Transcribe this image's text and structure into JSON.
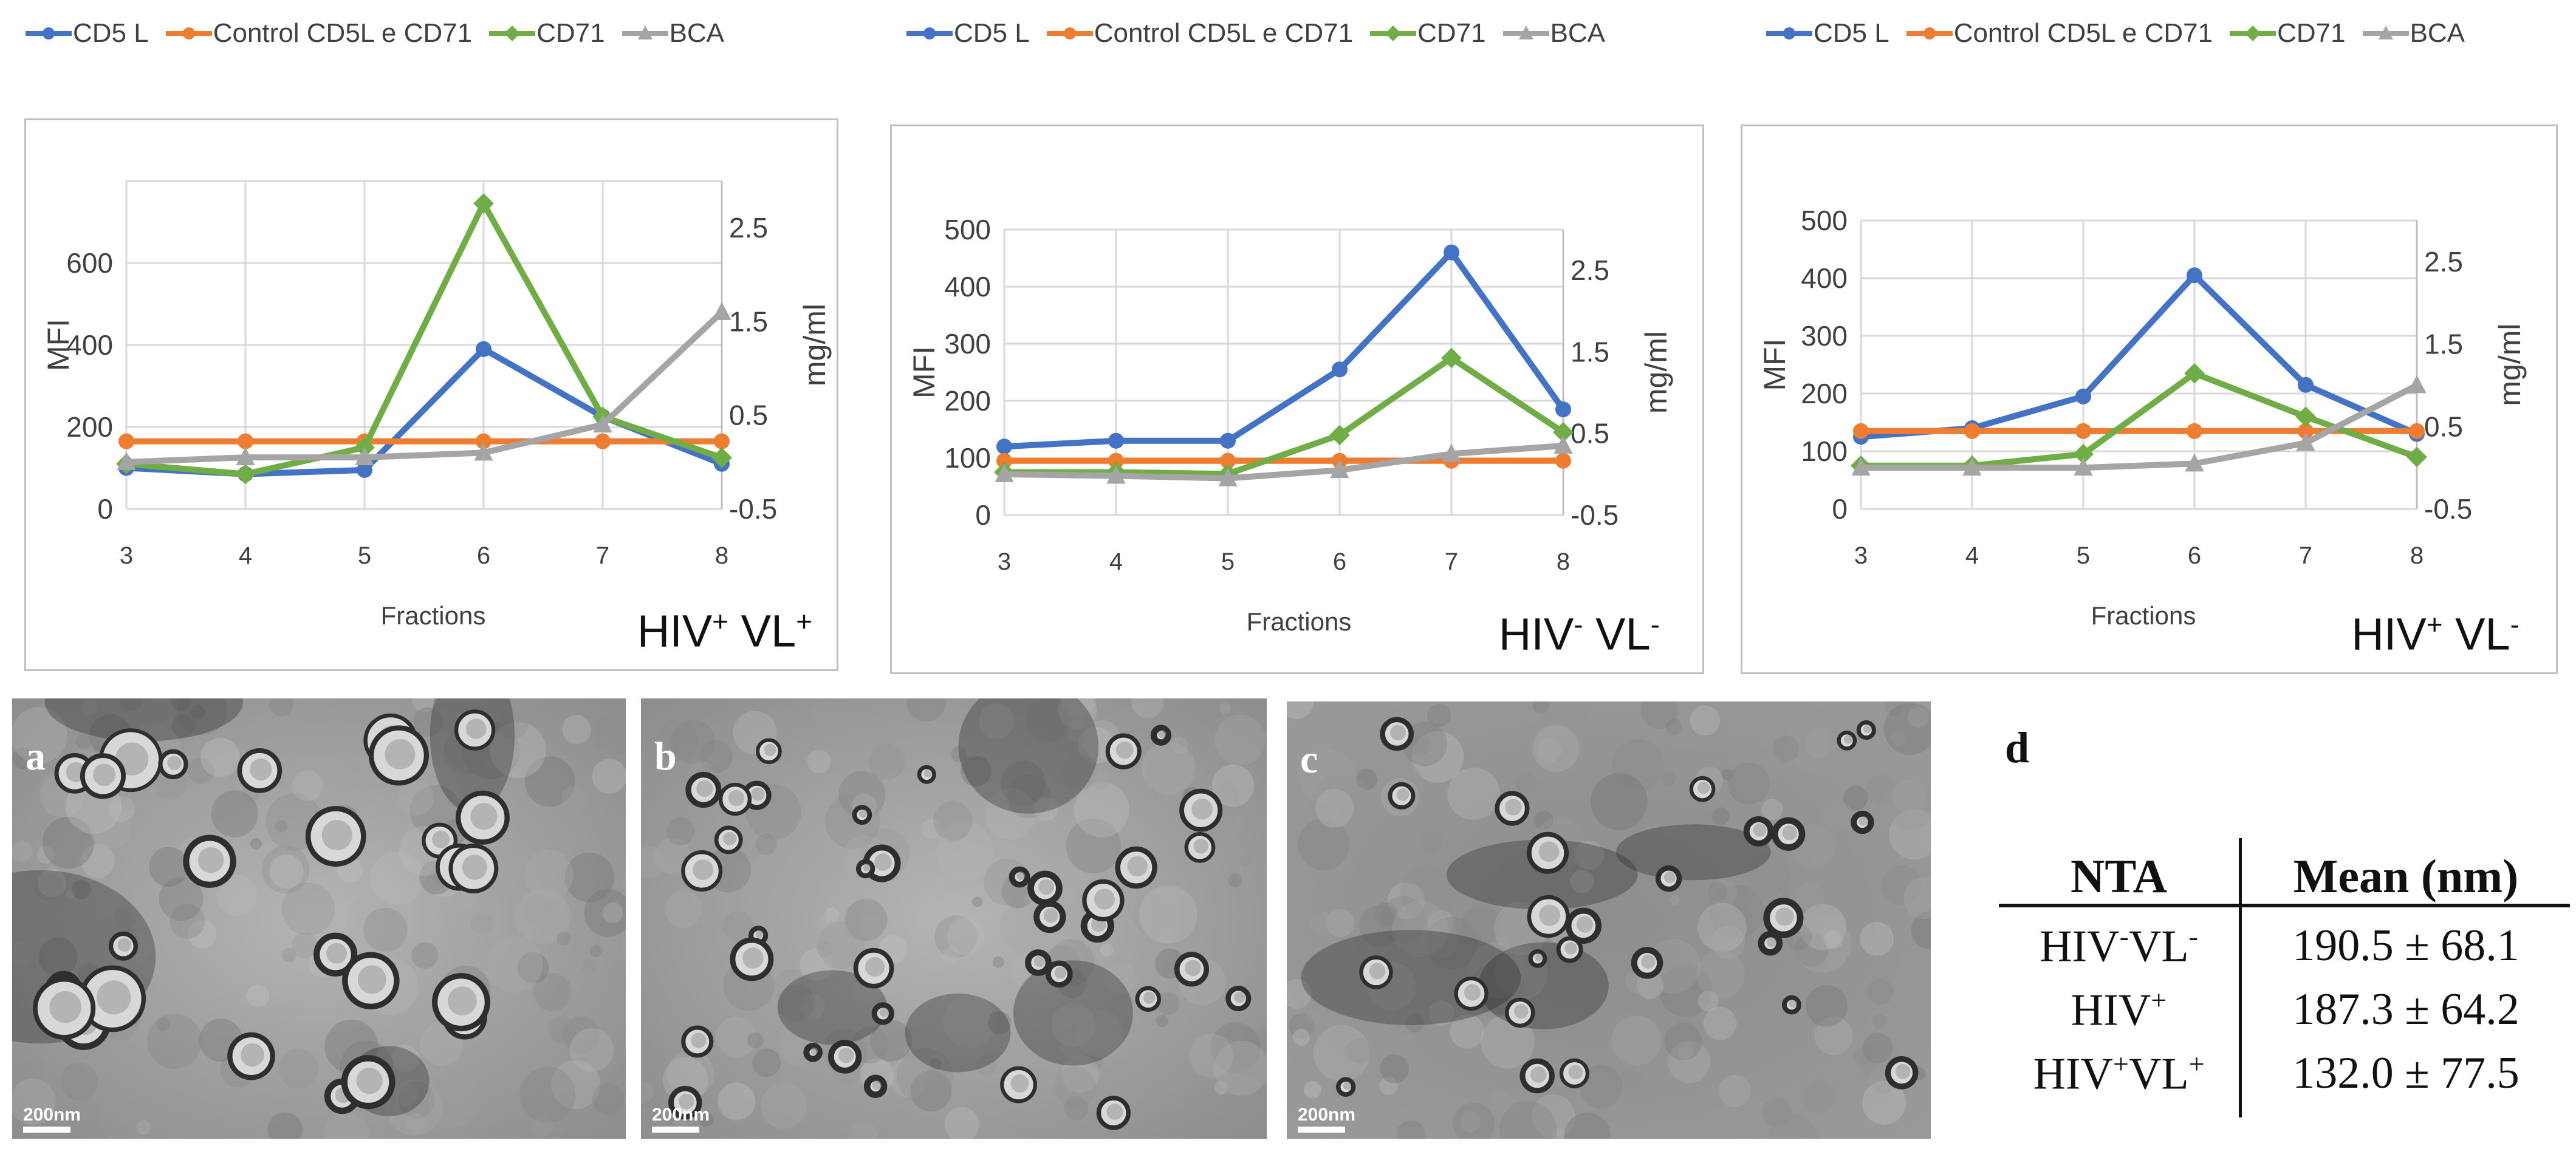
{
  "legend": {
    "items": [
      {
        "label": "CD5 L",
        "color": "#4472C4",
        "marker": "circle"
      },
      {
        "label": "Control CD5L e CD71",
        "color": "#ED7D31",
        "marker": "circle"
      },
      {
        "label": "CD71",
        "color": "#70AD47",
        "marker": "diamond"
      },
      {
        "label": "BCA",
        "color": "#A5A5A5",
        "marker": "triangle"
      }
    ]
  },
  "chart_data": [
    {
      "type": "line",
      "panel_title": {
        "main": "HIV",
        "sup1": "+",
        "mid": " VL",
        "sup2": "+"
      },
      "xlabel": "Fractions",
      "ylabel": "MFI",
      "ylabel_right": "mg/ml",
      "x": [
        3,
        4,
        5,
        6,
        7,
        8
      ],
      "ylim": [
        0,
        800
      ],
      "yticks": [
        0,
        200,
        400,
        600
      ],
      "y2lim": [
        -0.5,
        3.0
      ],
      "y2ticks": [
        -0.5,
        0.5,
        1.5,
        2.5
      ],
      "series": [
        {
          "name": "CD5 L",
          "axis": "left",
          "values": [
            100,
            85,
            95,
            390,
            225,
            110
          ]
        },
        {
          "name": "Control CD5L e CD71",
          "axis": "left",
          "values": [
            165,
            165,
            165,
            165,
            165,
            165
          ]
        },
        {
          "name": "CD71",
          "axis": "left",
          "values": [
            110,
            85,
            150,
            745,
            225,
            125
          ]
        },
        {
          "name": "BCA",
          "axis": "right",
          "values": [
            0.0,
            0.05,
            0.05,
            0.1,
            0.4,
            1.6
          ]
        }
      ]
    },
    {
      "type": "line",
      "panel_title": {
        "main": "HIV",
        "sup1": "-",
        "mid": " VL",
        "sup2": "-"
      },
      "xlabel": "Fractions",
      "ylabel": "MFI",
      "ylabel_right": "mg/ml",
      "x": [
        3,
        4,
        5,
        6,
        7,
        8
      ],
      "ylim": [
        0,
        500
      ],
      "yticks": [
        0,
        100,
        200,
        300,
        400,
        500
      ],
      "y2lim": [
        -0.5,
        3.0
      ],
      "y2ticks": [
        -0.5,
        0.5,
        1.5,
        2.5
      ],
      "series": [
        {
          "name": "CD5 L",
          "axis": "left",
          "values": [
            120,
            130,
            130,
            255,
            460,
            185
          ]
        },
        {
          "name": "Control CD5L e CD71",
          "axis": "left",
          "values": [
            95,
            95,
            95,
            95,
            95,
            95
          ]
        },
        {
          "name": "CD71",
          "axis": "left",
          "values": [
            75,
            75,
            72,
            140,
            275,
            145
          ]
        },
        {
          "name": "BCA",
          "axis": "right",
          "values": [
            0.0,
            -0.02,
            -0.05,
            0.05,
            0.25,
            0.35
          ]
        }
      ]
    },
    {
      "type": "line",
      "panel_title": {
        "main": "HIV",
        "sup1": "+",
        "mid": " VL",
        "sup2": "-"
      },
      "xlabel": "Fractions",
      "ylabel": "MFI",
      "ylabel_right": "mg/ml",
      "x": [
        3,
        4,
        5,
        6,
        7,
        8
      ],
      "ylim": [
        0,
        500
      ],
      "yticks": [
        0,
        100,
        200,
        300,
        400,
        500
      ],
      "y2lim": [
        -0.5,
        3.0
      ],
      "y2ticks": [
        -0.5,
        0.5,
        1.5,
        2.5
      ],
      "series": [
        {
          "name": "CD5 L",
          "axis": "left",
          "values": [
            125,
            140,
            195,
            405,
            215,
            130
          ]
        },
        {
          "name": "Control CD5L e CD71",
          "axis": "left",
          "values": [
            135,
            135,
            135,
            135,
            135,
            135
          ]
        },
        {
          "name": "CD71",
          "axis": "left",
          "values": [
            75,
            75,
            95,
            235,
            160,
            90
          ]
        },
        {
          "name": "BCA",
          "axis": "right",
          "values": [
            0.0,
            0.0,
            0.0,
            0.05,
            0.3,
            1.0
          ]
        }
      ]
    }
  ],
  "micrographs": [
    {
      "letter": "a",
      "scale": "200nm"
    },
    {
      "letter": "b",
      "scale": "200nm"
    },
    {
      "letter": "c",
      "scale": "200nm"
    }
  ],
  "nta_table": {
    "letter": "d",
    "headers": [
      "NTA",
      "Mean (nm)"
    ],
    "rows": [
      {
        "group": {
          "a": "HIV",
          "s1": "-",
          "b": "VL",
          "s2": "-"
        },
        "mean": "190.5 ± 68.1"
      },
      {
        "group": {
          "a": "HIV",
          "s1": "+",
          "b": "",
          "s2": ""
        },
        "mean": "187.3 ± 64.2"
      },
      {
        "group": {
          "a": "HIV",
          "s1": "+",
          "b": "VL",
          "s2": "+"
        },
        "mean": "132.0 ± 77.5"
      }
    ]
  }
}
